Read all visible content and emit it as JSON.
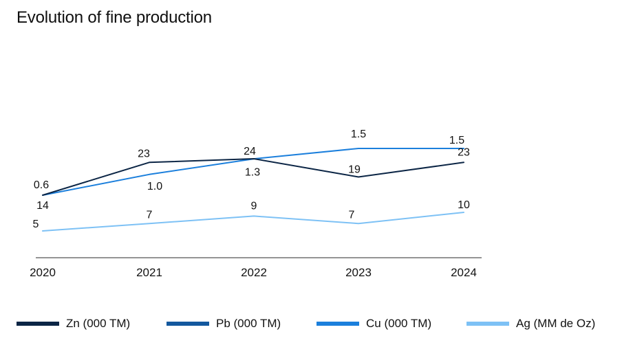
{
  "chart_data": {
    "type": "line",
    "title": "Evolution of fine production",
    "xlabel": "",
    "ylabel": "",
    "categories": [
      "2020",
      "2021",
      "2022",
      "2023",
      "2024"
    ],
    "grid": false,
    "legend_position": "bottom",
    "series": [
      {
        "name": "Zn (000 TM)",
        "color": "#0b2545",
        "values": [
          14,
          23,
          24,
          19,
          23
        ],
        "labels": [
          "14",
          "23",
          "24",
          "19",
          "23"
        ]
      },
      {
        "name": "Pb (000 TM)",
        "color": "#13589e",
        "values": [
          null,
          null,
          null,
          null,
          null
        ],
        "labels": []
      },
      {
        "name": "Cu (000 TM)",
        "color": "#1b7fdc",
        "values": [
          0.6,
          1.0,
          1.3,
          1.5,
          1.5
        ],
        "labels": [
          "0.6",
          "1.0",
          "1.3",
          "1.5",
          "1.5"
        ]
      },
      {
        "name": "Ag (MM de Oz)",
        "color": "#7dc1f5",
        "values": [
          5,
          7,
          9,
          7,
          10
        ],
        "labels": [
          "5",
          "7",
          "9",
          "7",
          "10"
        ]
      }
    ]
  }
}
